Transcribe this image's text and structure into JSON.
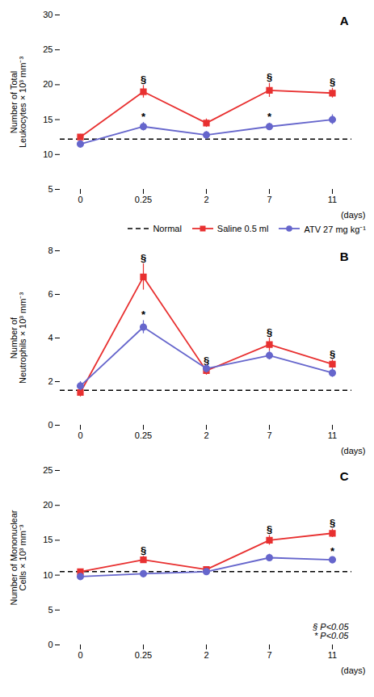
{
  "chart_data": [
    {
      "type": "line",
      "title": "A",
      "categories": [
        "0",
        "0.25",
        "2",
        "7",
        "11"
      ],
      "xlabel": "(days)",
      "ylabel": "Number of Total\nLeukocytes × 10³ mm⁻³",
      "ylim": [
        5,
        30
      ],
      "yticks": [
        5,
        10,
        15,
        20,
        25,
        30
      ],
      "series": [
        {
          "name": "Normal",
          "type": "rule",
          "value": 12.2,
          "color": "black",
          "line_style": "dashed"
        },
        {
          "name": "Saline 0.5 ml",
          "color": "#e83030",
          "marker": "square",
          "values": [
            12.5,
            19.0,
            14.5,
            19.2,
            18.8
          ],
          "errors": [
            0.4,
            0.9,
            0.6,
            1.0,
            0.7
          ],
          "point_labels": [
            null,
            "§",
            null,
            "§",
            "§"
          ]
        },
        {
          "name": "ATV 27 mg kg⁻¹",
          "color": "#6666cc",
          "marker": "circle",
          "values": [
            11.5,
            14.0,
            12.8,
            14.0,
            15.0
          ],
          "errors": [
            0.5,
            0.6,
            0.5,
            0.5,
            0.7
          ],
          "point_labels": [
            null,
            "*",
            null,
            "*",
            null
          ]
        }
      ]
    },
    {
      "type": "line",
      "title": "B",
      "categories": [
        "0",
        "0.25",
        "2",
        "7",
        "11"
      ],
      "xlabel": "(days)",
      "ylabel": "Number of\nNeutrophils × 10³ mm⁻³",
      "ylim": [
        0,
        8
      ],
      "yticks": [
        0,
        2,
        4,
        6,
        8
      ],
      "legend": "upper right",
      "series": [
        {
          "name": "Normal",
          "type": "rule",
          "value": 1.6,
          "color": "black",
          "line_style": "dashed"
        },
        {
          "name": "Saline 0.5 ml",
          "color": "#e83030",
          "marker": "square",
          "values": [
            1.5,
            6.8,
            2.5,
            3.7,
            2.8
          ],
          "errors": [
            0.2,
            0.6,
            0.2,
            0.3,
            0.2
          ],
          "point_labels": [
            null,
            "§",
            "§",
            "§",
            "§"
          ]
        },
        {
          "name": "ATV 27 mg kg⁻¹",
          "color": "#6666cc",
          "marker": "circle",
          "values": [
            1.8,
            4.5,
            2.6,
            3.2,
            2.4
          ],
          "errors": [
            0.2,
            0.3,
            0.2,
            0.2,
            0.2
          ],
          "point_labels": [
            null,
            "*",
            null,
            null,
            null
          ]
        }
      ]
    },
    {
      "type": "line",
      "title": "C",
      "categories": [
        "0",
        "0.25",
        "2",
        "7",
        "11"
      ],
      "xlabel": "(days)",
      "ylabel": "Number of Mononuclear\nCells × 10³ mm⁻³",
      "ylim": [
        0,
        25
      ],
      "yticks": [
        0,
        5,
        10,
        15,
        20,
        25
      ],
      "annotations": [
        "§ P<0.05",
        "* P<0.05"
      ],
      "series": [
        {
          "name": "Normal",
          "type": "rule",
          "value": 10.5,
          "color": "black",
          "line_style": "dashed"
        },
        {
          "name": "Saline 0.5 ml",
          "color": "#e83030",
          "marker": "square",
          "values": [
            10.5,
            12.2,
            10.8,
            15.0,
            16.0
          ],
          "errors": [
            0.3,
            0.5,
            0.4,
            0.7,
            0.6
          ],
          "point_labels": [
            null,
            "§",
            null,
            "§",
            "§"
          ]
        },
        {
          "name": "ATV 27 mg kg⁻¹",
          "color": "#6666cc",
          "marker": "circle",
          "values": [
            9.8,
            10.2,
            10.5,
            12.5,
            12.2
          ],
          "errors": [
            0.3,
            0.4,
            0.4,
            0.5,
            0.4
          ],
          "point_labels": [
            null,
            null,
            null,
            null,
            "*"
          ]
        }
      ]
    }
  ]
}
